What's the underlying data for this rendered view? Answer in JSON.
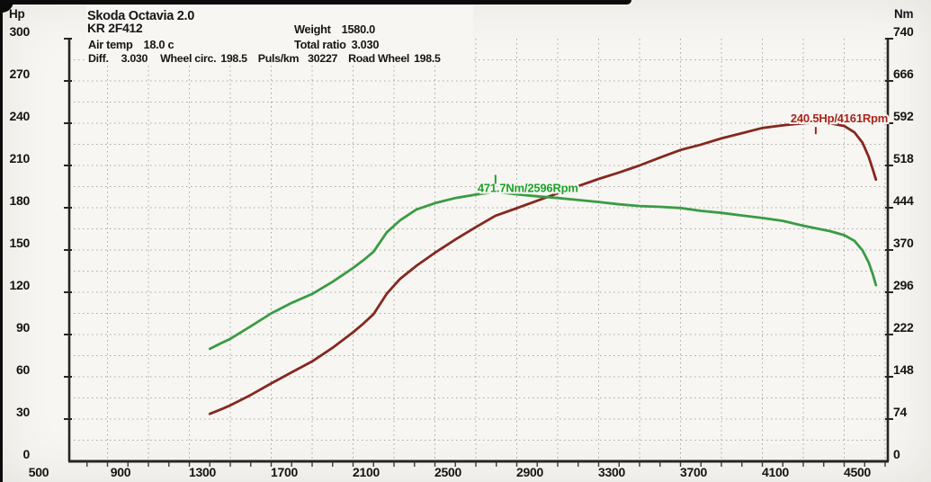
{
  "page": {
    "background": "#f7f6f2",
    "frame_color": "#0b0b0b"
  },
  "header": {
    "title": "Skoda Octavia 2.0",
    "subtitle": "KR 2F412",
    "weight": {
      "label": "Weight",
      "value": "1580.0"
    },
    "air_temp": {
      "label": "Air temp",
      "value": "18.0 c"
    },
    "total_ratio": {
      "label": "Total ratio",
      "value": "3.030"
    },
    "diff": {
      "label": "Diff.",
      "value": "3.030"
    },
    "wheel_circ": {
      "label": "Wheel circ.",
      "value": "198.5"
    },
    "puls_km": {
      "label": "Puls/km",
      "value": "30227"
    },
    "road_wheel": {
      "label": "Road Wheel",
      "value": "198.5"
    }
  },
  "chart_data": {
    "type": "line",
    "title": "Skoda Octavia 2.0",
    "grid": "dotted",
    "axis_color": "#262626",
    "grid_color": "#a6a6a6",
    "x_axis": {
      "ticks": [
        500,
        900,
        1300,
        1700,
        2100,
        2500,
        2900,
        3300,
        3700,
        4100,
        4500
      ],
      "range": [
        513,
        4513
      ],
      "minor_grid_step_rpm": 200,
      "minor_tick_step_rpm": 100
    },
    "y_left": {
      "unit": "Hp",
      "ticks": [
        300,
        270,
        240,
        210,
        180,
        150,
        120,
        90,
        60,
        30,
        0
      ],
      "range": [
        0,
        300
      ],
      "grid_step": 15
    },
    "y_right": {
      "unit": "Nm",
      "ticks": [
        740,
        666,
        592,
        518,
        444,
        370,
        296,
        222,
        148,
        74,
        0
      ],
      "range": [
        0,
        740
      ]
    },
    "series": [
      {
        "name": "power",
        "unit": "Hp",
        "color": "#85281f",
        "label_color": "#a8241c",
        "peak": {
          "rpm": 4161,
          "value": 240.5,
          "label": "240.5Hp/4161Rpm"
        },
        "points": [
          [
            1200,
            33.7
          ],
          [
            1250,
            36.6
          ],
          [
            1300,
            39.7
          ],
          [
            1400,
            47.1
          ],
          [
            1500,
            55.3
          ],
          [
            1600,
            63.2
          ],
          [
            1700,
            70.9
          ],
          [
            1800,
            80.6
          ],
          [
            1900,
            91.6
          ],
          [
            1950,
            97.7
          ],
          [
            2000,
            104.5
          ],
          [
            2065,
            119.0
          ],
          [
            2130,
            129.5
          ],
          [
            2210,
            138.8
          ],
          [
            2300,
            148.0
          ],
          [
            2400,
            157.5
          ],
          [
            2500,
            166.2
          ],
          [
            2596,
            174.3
          ],
          [
            2700,
            179.7
          ],
          [
            2800,
            185.0
          ],
          [
            2900,
            190.3
          ],
          [
            3000,
            195.4
          ],
          [
            3100,
            200.4
          ],
          [
            3200,
            205.0
          ],
          [
            3300,
            210.0
          ],
          [
            3400,
            215.6
          ],
          [
            3500,
            221.0
          ],
          [
            3600,
            224.8
          ],
          [
            3700,
            229.2
          ],
          [
            3800,
            232.9
          ],
          [
            3900,
            236.6
          ],
          [
            4000,
            238.5
          ],
          [
            4100,
            240.0
          ],
          [
            4161,
            240.5
          ],
          [
            4230,
            240.0
          ],
          [
            4300,
            238.0
          ],
          [
            4350,
            233.5
          ],
          [
            4390,
            226.0
          ],
          [
            4420,
            216.0
          ],
          [
            4440,
            207.0
          ],
          [
            4455,
            200.0
          ]
        ]
      },
      {
        "name": "torque",
        "unit": "Nm",
        "color": "#3a9b45",
        "label_color": "#1ea32b",
        "peak": {
          "rpm": 2596,
          "value": 471.7,
          "label": "471.7Nm/2596Rpm"
        },
        "points": [
          [
            1200,
            197.0
          ],
          [
            1250,
            206.0
          ],
          [
            1300,
            214.5
          ],
          [
            1400,
            236.5
          ],
          [
            1500,
            259.0
          ],
          [
            1600,
            277.5
          ],
          [
            1700,
            293.0
          ],
          [
            1800,
            314.5
          ],
          [
            1900,
            338.5
          ],
          [
            1950,
            352.0
          ],
          [
            2000,
            367.0
          ],
          [
            2065,
            401.0
          ],
          [
            2130,
            422.0
          ],
          [
            2210,
            441.0
          ],
          [
            2300,
            452.0
          ],
          [
            2400,
            461.0
          ],
          [
            2500,
            467.0
          ],
          [
            2596,
            471.7
          ],
          [
            2700,
            467.5
          ],
          [
            2800,
            464.0
          ],
          [
            2900,
            461.0
          ],
          [
            3000,
            457.5
          ],
          [
            3100,
            454.0
          ],
          [
            3200,
            450.0
          ],
          [
            3300,
            447.0
          ],
          [
            3400,
            445.5
          ],
          [
            3500,
            443.5
          ],
          [
            3600,
            438.5
          ],
          [
            3700,
            435.0
          ],
          [
            3800,
            430.5
          ],
          [
            3900,
            426.0
          ],
          [
            4000,
            421.0
          ],
          [
            4100,
            412.5
          ],
          [
            4161,
            408.0
          ],
          [
            4230,
            403.0
          ],
          [
            4300,
            396.0
          ],
          [
            4350,
            386.0
          ],
          [
            4390,
            369.0
          ],
          [
            4420,
            348.0
          ],
          [
            4440,
            327.0
          ],
          [
            4455,
            308.5
          ]
        ]
      }
    ]
  }
}
